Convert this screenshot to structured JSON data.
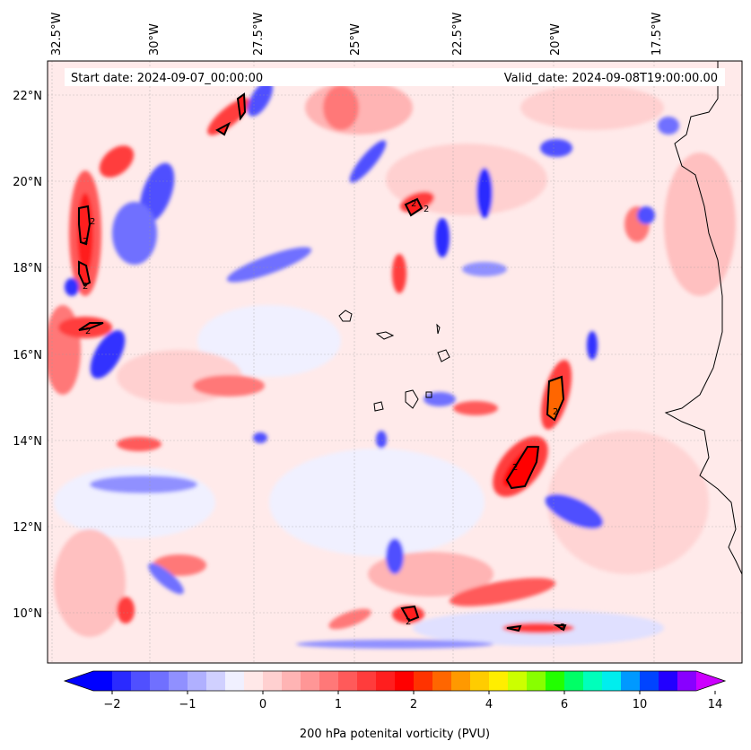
{
  "header": {
    "start_date": "Start date: 2024-09-07_00:00:00",
    "valid_date": "Valid_date: 2024-09-08T19:00:00.00"
  },
  "axes": {
    "lon_ticks": [
      "32.5°W",
      "30°W",
      "27.5°W",
      "25°W",
      "22.5°W",
      "20°W",
      "17.5°W"
    ],
    "lat_ticks": [
      "22°N",
      "20°N",
      "18°N",
      "16°N",
      "14°N",
      "12°N",
      "10°N"
    ]
  },
  "colorbar": {
    "ticks": [
      "−2",
      "−1",
      "0",
      "1",
      "2",
      "4",
      "6",
      "10",
      "14"
    ],
    "label": "200 hPa potenital vorticity (PVU)",
    "colors": [
      "#0000ff",
      "#2a2aff",
      "#5050ff",
      "#7070ff",
      "#9090ff",
      "#b0b0ff",
      "#d0d0ff",
      "#f0f0ff",
      "#ffe8e8",
      "#ffd0d0",
      "#ffb4b4",
      "#ff9696",
      "#ff7878",
      "#ff5a5a",
      "#ff3c3c",
      "#ff1e1e",
      "#ff0000",
      "#ff3300",
      "#ff6600",
      "#ff9900",
      "#ffcc00",
      "#ffee00",
      "#ccff00",
      "#88ff00",
      "#22ff00",
      "#00ff66",
      "#00ffbb",
      "#00eeee",
      "#0099ff",
      "#0044ff",
      "#2200ff",
      "#8800ff"
    ],
    "extend_low_color": "#0000ff",
    "extend_high_color": "#cc00ff"
  },
  "contour_labels": [
    "2",
    "2",
    "2",
    "2",
    "2",
    "2",
    "2",
    "2",
    "2",
    "2"
  ]
}
